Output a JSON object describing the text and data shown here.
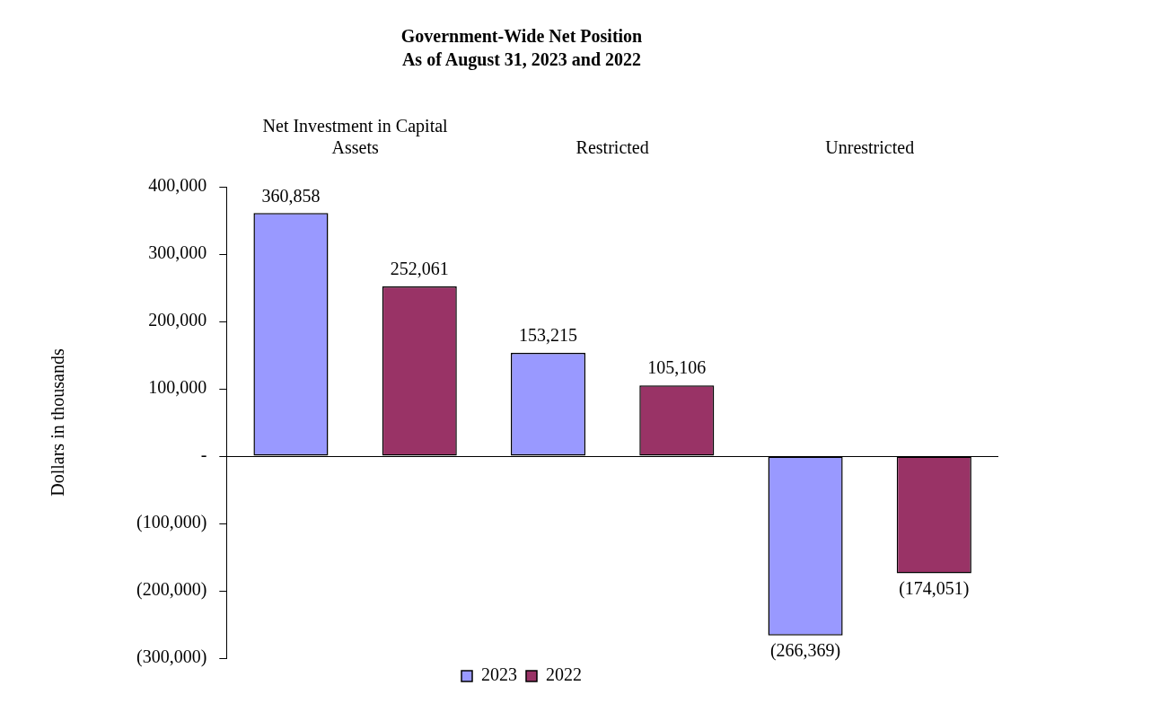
{
  "chart_data": {
    "type": "bar",
    "title": "Government-Wide Net Position",
    "subtitle": "As of August 31, 2023 and 2022",
    "ylabel": "Dollars in thousands",
    "categories": [
      "Net Investment in Capital Assets",
      "Restricted",
      "Unrestricted"
    ],
    "series": [
      {
        "name": "2023",
        "color": "#9999ff",
        "values": [
          360858,
          153215,
          -266369
        ],
        "value_labels": [
          "360,858",
          "153,215",
          "(266,369)"
        ]
      },
      {
        "name": "2022",
        "color": "#993366",
        "values": [
          252061,
          105106,
          -174051
        ],
        "value_labels": [
          "252,061",
          "105,106",
          "(174,051)"
        ]
      }
    ],
    "ylim": [
      -300000,
      400000
    ],
    "yticks": [
      {
        "value": -300000,
        "label": "(300,000)"
      },
      {
        "value": -200000,
        "label": "(200,000)"
      },
      {
        "value": -100000,
        "label": "(100,000)"
      },
      {
        "value": 0,
        "label": "-"
      },
      {
        "value": 100000,
        "label": "100,000"
      },
      {
        "value": 200000,
        "label": "200,000"
      },
      {
        "value": 300000,
        "label": "300,000"
      },
      {
        "value": 400000,
        "label": "400,000"
      }
    ],
    "legend": "bottom"
  }
}
